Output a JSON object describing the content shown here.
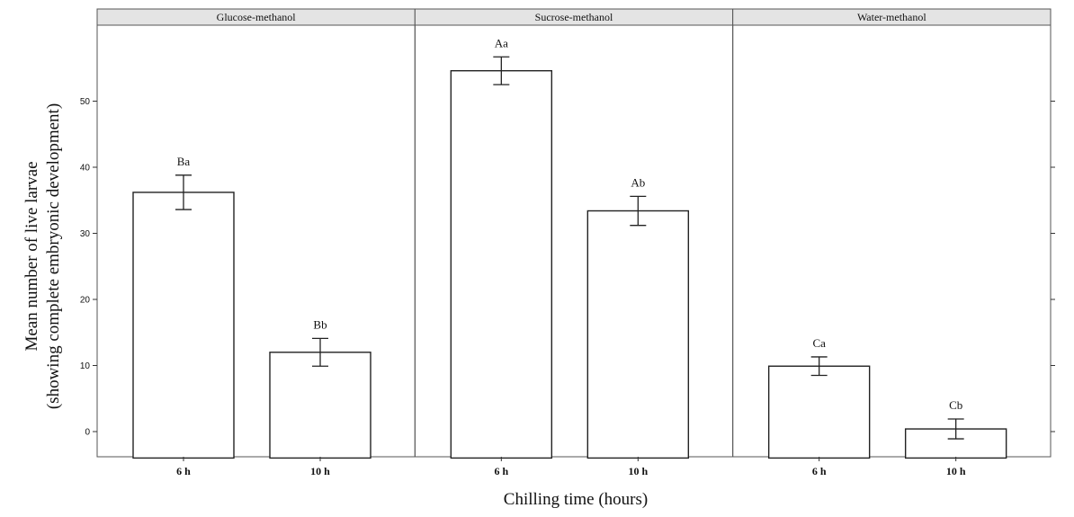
{
  "chart_data": {
    "type": "bar",
    "xlabel": "Chilling time (hours)",
    "ylabel_line1": "Mean number of live larvae",
    "ylabel_line2": "(showing complete embryonic development)",
    "ylim": [
      -4,
      62
    ],
    "yticks": [
      0,
      10,
      20,
      30,
      40,
      50
    ],
    "categories": [
      "6 h",
      "10 h"
    ],
    "panels": [
      {
        "name": "Glucose-methanol",
        "bars": [
          {
            "category": "6 h",
            "value": 36.2,
            "error": 2.6,
            "label": "Ba"
          },
          {
            "category": "10 h",
            "value": 12.0,
            "error": 2.1,
            "label": "Bb"
          }
        ]
      },
      {
        "name": "Sucrose-methanol",
        "bars": [
          {
            "category": "6 h",
            "value": 54.6,
            "error": 2.1,
            "label": "Aa"
          },
          {
            "category": "10 h",
            "value": 33.4,
            "error": 2.2,
            "label": "Ab"
          }
        ]
      },
      {
        "name": "Water-methanol",
        "bars": [
          {
            "category": "6 h",
            "value": 9.9,
            "error": 1.4,
            "label": "Ca"
          },
          {
            "category": "10 h",
            "value": 0.4,
            "error": 1.5,
            "label": "Cb"
          }
        ]
      }
    ],
    "grid": false,
    "legend": "none"
  }
}
